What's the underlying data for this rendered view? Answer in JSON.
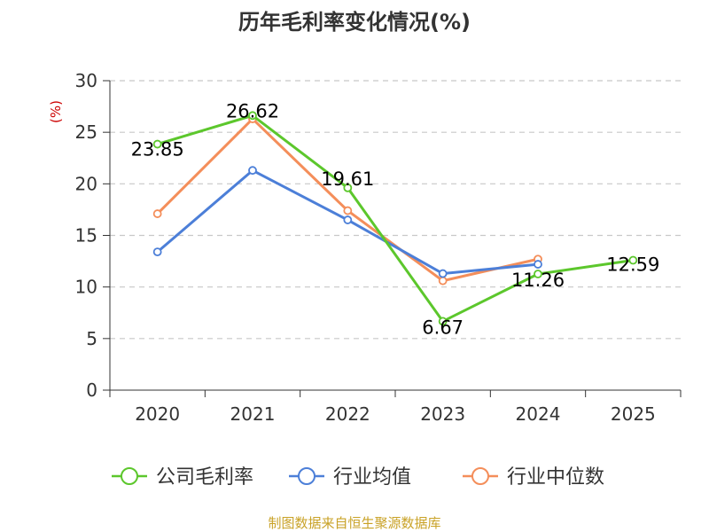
{
  "chart_data": {
    "type": "line",
    "title": "历年毛利率变化情况(%)",
    "ylabel": "(%)",
    "xlabel": "",
    "categories": [
      "2020",
      "2021",
      "2022",
      "2023",
      "2024",
      "2025"
    ],
    "ylim": [
      0,
      30
    ],
    "yticks": [
      0,
      5,
      10,
      15,
      20,
      25,
      30
    ],
    "grid": true,
    "legend_position": "bottom",
    "series": [
      {
        "name": "公司毛利率",
        "color": "#5cc72c",
        "values": [
          23.85,
          26.62,
          19.61,
          6.67,
          11.26,
          12.59
        ],
        "labels": [
          "23.85",
          "26.62",
          "19.61",
          "6.67",
          "11.26",
          "12.59"
        ]
      },
      {
        "name": "行业均值",
        "color": "#4c7fd8",
        "values": [
          13.4,
          21.3,
          16.5,
          11.3,
          12.2,
          null
        ]
      },
      {
        "name": "行业中位数",
        "color": "#f48e5a",
        "values": [
          17.1,
          26.3,
          17.4,
          10.6,
          12.7,
          null
        ]
      }
    ]
  },
  "footer": {
    "source": "制图数据来自恒生聚源数据库"
  }
}
